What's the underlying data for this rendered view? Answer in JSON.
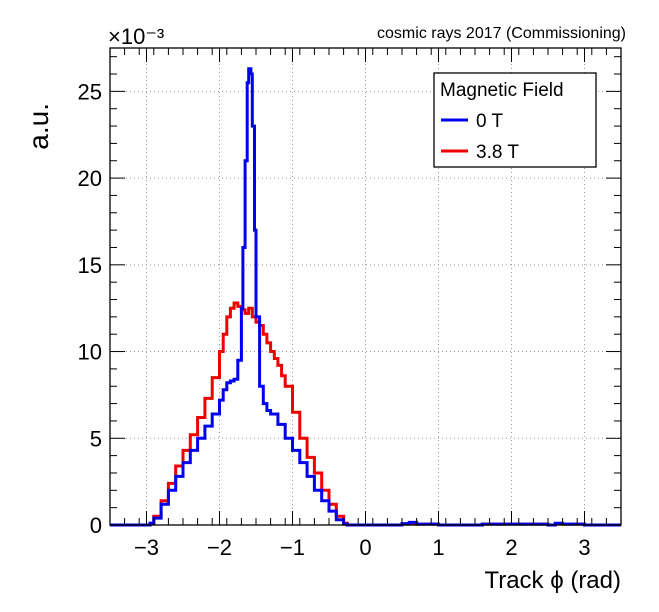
{
  "chart_data": {
    "type": "line",
    "title": "cosmic rays 2017 (Commissioning)",
    "xlabel": "Track ϕ (rad)",
    "ylabel": "a.u.",
    "y_multiplier": "×10⁻³",
    "xlim": [
      -3.5,
      3.5
    ],
    "ylim": [
      0,
      27.5
    ],
    "x_ticks": [
      -3,
      -2,
      -1,
      0,
      1,
      2,
      3
    ],
    "x_tick_labels": [
      "−3",
      "−2",
      "−1",
      "0",
      "1",
      "2",
      "3"
    ],
    "y_ticks": [
      0,
      5,
      10,
      15,
      20,
      25
    ],
    "y_tick_labels": [
      "0",
      "5",
      "10",
      "15",
      "20",
      "25"
    ],
    "grid": true,
    "legend": {
      "title": "Magnetic Field",
      "position": "top-right"
    },
    "series": [
      {
        "name": "0 T",
        "color": "#0000ee",
        "x": [
          -3.5,
          -3.0,
          -2.95,
          -2.9,
          -2.8,
          -2.7,
          -2.6,
          -2.5,
          -2.4,
          -2.3,
          -2.2,
          -2.1,
          -2.0,
          -1.95,
          -1.9,
          -1.85,
          -1.8,
          -1.75,
          -1.7,
          -1.68,
          -1.65,
          -1.62,
          -1.6,
          -1.57,
          -1.55,
          -1.52,
          -1.5,
          -1.45,
          -1.4,
          -1.35,
          -1.3,
          -1.2,
          -1.1,
          -1.0,
          -0.9,
          -0.8,
          -0.7,
          -0.6,
          -0.5,
          -0.4,
          -0.3,
          -0.25,
          0.4,
          0.5,
          0.6,
          0.7,
          1.0,
          1.5,
          1.6,
          2.5,
          2.6,
          2.7,
          3.0,
          3.5
        ],
        "values": [
          0,
          0,
          0.1,
          0.4,
          1.2,
          2.0,
          2.8,
          3.6,
          4.3,
          5.0,
          5.7,
          6.4,
          7.2,
          7.8,
          8.2,
          8.3,
          8.4,
          9.5,
          12.5,
          16.0,
          21.0,
          25.5,
          26.3,
          26.0,
          23.0,
          17.0,
          12.0,
          8.0,
          7.0,
          6.6,
          6.4,
          5.8,
          5.0,
          4.3,
          3.6,
          2.8,
          2.0,
          1.4,
          0.8,
          0.3,
          0.05,
          0,
          0,
          0.08,
          0.15,
          0.05,
          0,
          0,
          0.05,
          0,
          0.1,
          0.05,
          0,
          0
        ]
      },
      {
        "name": "3.8 T",
        "color": "#ee0000",
        "x": [
          -3.5,
          -3.0,
          -2.95,
          -2.9,
          -2.8,
          -2.7,
          -2.6,
          -2.5,
          -2.4,
          -2.3,
          -2.2,
          -2.1,
          -2.0,
          -1.95,
          -1.9,
          -1.85,
          -1.8,
          -1.75,
          -1.7,
          -1.65,
          -1.6,
          -1.55,
          -1.5,
          -1.45,
          -1.4,
          -1.35,
          -1.3,
          -1.25,
          -1.2,
          -1.15,
          -1.1,
          -1.0,
          -0.9,
          -0.8,
          -0.7,
          -0.6,
          -0.5,
          -0.4,
          -0.3,
          -0.25,
          0.4,
          0.5,
          0.6,
          0.7,
          1.0,
          1.5,
          1.6,
          2.5,
          2.6,
          2.7,
          3.0,
          3.5
        ],
        "values": [
          0,
          0,
          0.1,
          0.5,
          1.4,
          2.4,
          3.4,
          4.3,
          5.2,
          6.2,
          7.3,
          8.5,
          10.0,
          11.0,
          12.0,
          12.5,
          12.8,
          12.6,
          12.4,
          12.2,
          12.5,
          12.0,
          11.7,
          11.5,
          11.0,
          10.5,
          10.0,
          9.6,
          9.2,
          8.6,
          8.0,
          6.5,
          5.0,
          3.9,
          3.0,
          2.0,
          1.2,
          0.5,
          0.1,
          0,
          0,
          0.05,
          0.1,
          0.05,
          0,
          0,
          0.05,
          0,
          0.08,
          0.05,
          0,
          0
        ]
      }
    ]
  }
}
